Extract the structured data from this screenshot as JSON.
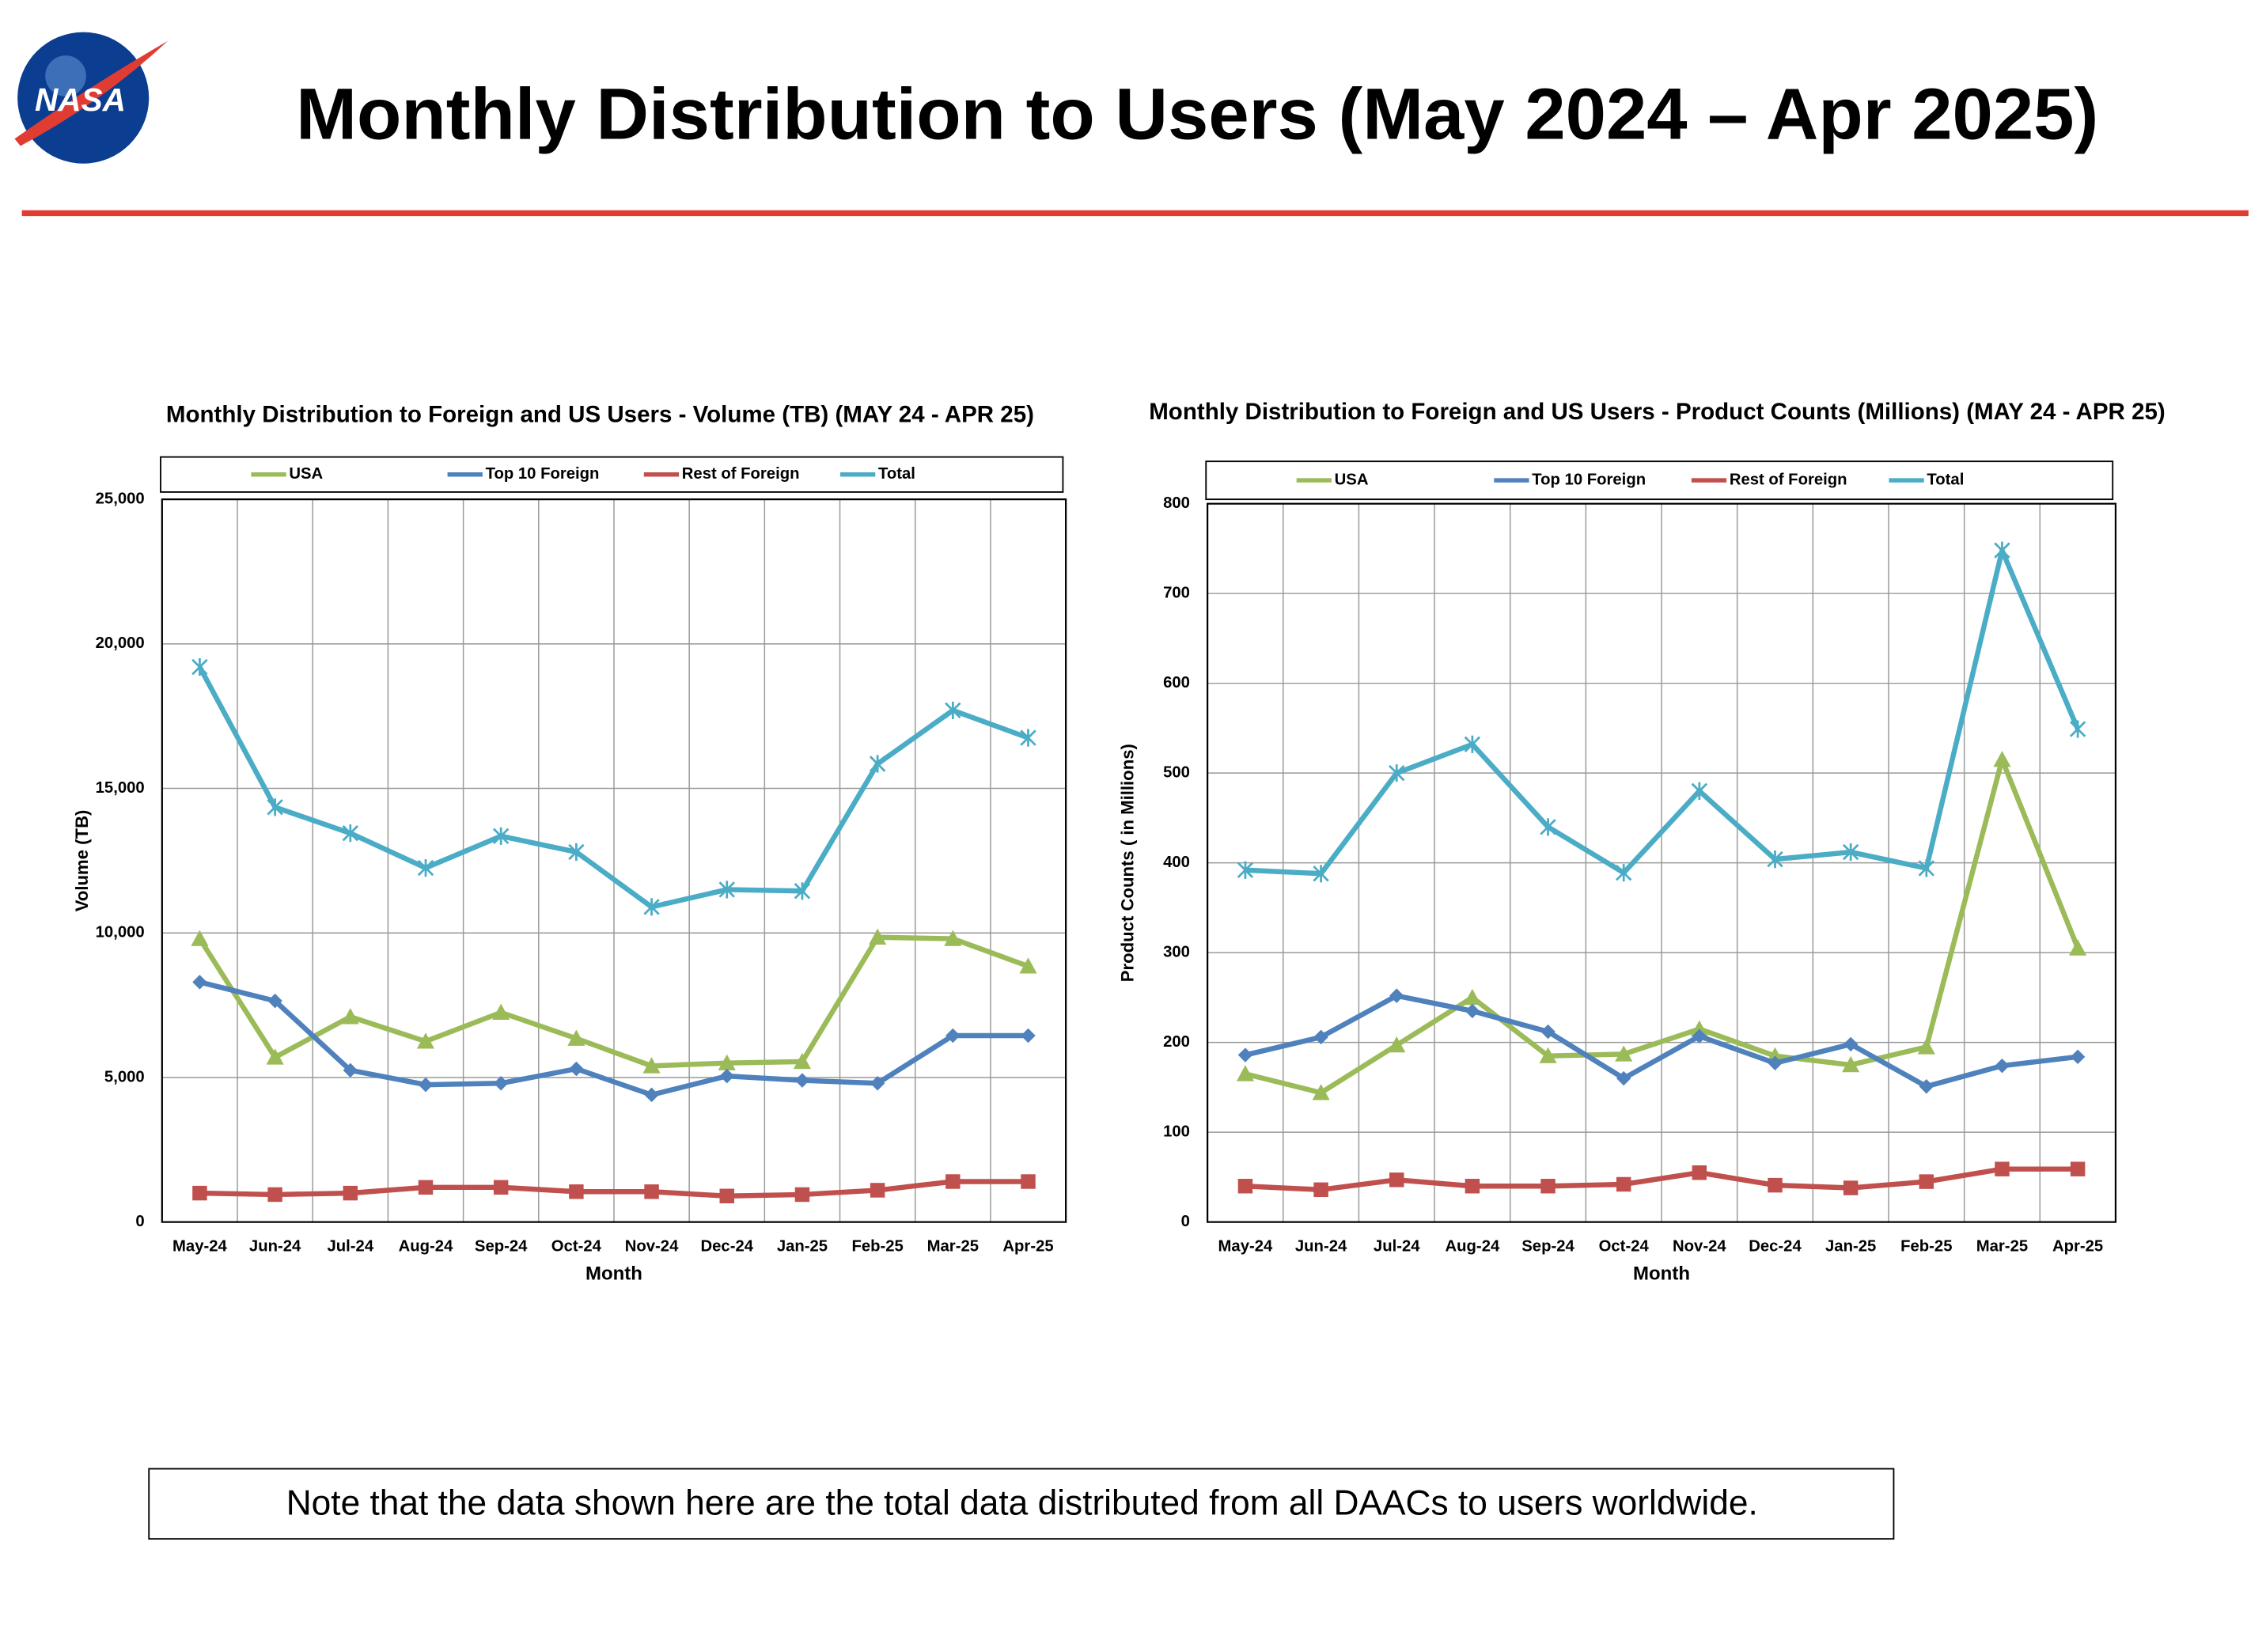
{
  "header": {
    "logo": "NASA",
    "title": "Monthly Distribution to Users (May 2024 – Apr 2025)"
  },
  "chart_data": [
    {
      "type": "line",
      "title": "Monthly Distribution to Foreign and US Users - Volume  (TB) (MAY 24 - APR 25)",
      "x_label": "Month",
      "y_label": "Volume (TB)",
      "categories": [
        "May-24",
        "Jun-24",
        "Jul-24",
        "Aug-24",
        "Sep-24",
        "Oct-24",
        "Nov-24",
        "Dec-24",
        "Jan-25",
        "Feb-25",
        "Mar-25",
        "Apr-25"
      ],
      "ylim": [
        0,
        25000
      ],
      "yticks": [
        0,
        {
          "value": 5000,
          "label": "5,000"
        },
        {
          "value": 10000,
          "label": "10,000"
        },
        {
          "value": 15000,
          "label": "15,000"
        },
        {
          "value": 20000,
          "label": "20,000"
        },
        {
          "value": 25000,
          "label": "25,000"
        }
      ],
      "grid": true,
      "legend": "top",
      "series": [
        {
          "name": "USA",
          "color": "#9bbb59",
          "marker": "triangle",
          "values": [
            9800,
            5700,
            7100,
            6250,
            7250,
            6350,
            5400,
            5500,
            5550,
            9850,
            9800,
            8850
          ]
        },
        {
          "name": "Top 10 Foreign",
          "color": "#4f81bd",
          "marker": "diamond",
          "values": [
            8300,
            7650,
            5250,
            4750,
            4800,
            5300,
            4400,
            5050,
            4900,
            4800,
            6450,
            6450
          ]
        },
        {
          "name": "Rest of Foreign",
          "color": "#c0504d",
          "marker": "square",
          "values": [
            1000,
            950,
            1000,
            1200,
            1200,
            1050,
            1050,
            900,
            950,
            1100,
            1400,
            1400
          ]
        },
        {
          "name": "Total",
          "color": "#4bacc6",
          "marker": "cross",
          "values": [
            19200,
            14350,
            13450,
            12250,
            13350,
            12800,
            10900,
            11500,
            11450,
            15850,
            17700,
            16750
          ]
        }
      ]
    },
    {
      "type": "line",
      "title": "Monthly Distribution to Foreign and US Users - Product Counts (Millions) (MAY 24 - APR 25)",
      "x_label": "Month",
      "y_label": "Product Counts ( in Millions)",
      "categories": [
        "May-24",
        "Jun-24",
        "Jul-24",
        "Aug-24",
        "Sep-24",
        "Oct-24",
        "Nov-24",
        "Dec-24",
        "Jan-25",
        "Feb-25",
        "Mar-25",
        "Apr-25"
      ],
      "ylim": [
        0,
        800
      ],
      "yticks": [
        0,
        100,
        200,
        300,
        400,
        500,
        600,
        700,
        800
      ],
      "grid": true,
      "legend": "top",
      "series": [
        {
          "name": "USA",
          "color": "#9bbb59",
          "marker": "triangle",
          "values": [
            165,
            144,
            197,
            250,
            185,
            187,
            215,
            185,
            175,
            195,
            515,
            305
          ]
        },
        {
          "name": "Top 10 Foreign",
          "color": "#4f81bd",
          "marker": "diamond",
          "values": [
            186,
            206,
            252,
            235,
            212,
            160,
            207,
            177,
            198,
            151,
            174,
            184
          ]
        },
        {
          "name": "Rest of Foreign",
          "color": "#c0504d",
          "marker": "square",
          "values": [
            40,
            36,
            47,
            40,
            40,
            42,
            55,
            41,
            38,
            45,
            59,
            59
          ]
        },
        {
          "name": "Total",
          "color": "#4bacc6",
          "marker": "cross",
          "values": [
            392,
            388,
            500,
            532,
            440,
            389,
            480,
            404,
            412,
            394,
            748,
            549
          ]
        }
      ]
    }
  ],
  "note": "Note that the data shown here are the total data distributed from all DAACs to users worldwide."
}
